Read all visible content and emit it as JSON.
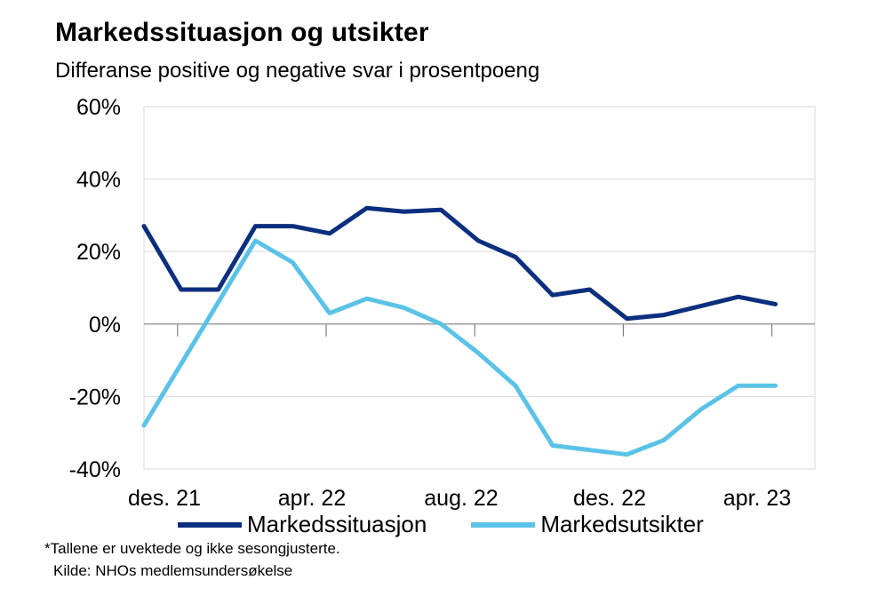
{
  "title": "Markedssituasjon  og utsikter",
  "subtitle": "Differanse positive og negative svar i prosentpoeng",
  "footnote": "*Tallene er uvektede og ikke sesongjusterte.",
  "source": "Kilde: NHOs medlemsundersøkelse",
  "chart_data": {
    "type": "line",
    "title": "Markedssituasjon  og utsikter",
    "subtitle": "Differanse positive og negative svar i prosentpoeng",
    "xlabel": "",
    "ylabel": "",
    "x_ticks": [
      "des. 21",
      "apr. 22",
      "aug. 22",
      "des. 22",
      "apr. 23"
    ],
    "y_ticks": [
      "60%",
      "40%",
      "20%",
      "0%",
      "-20%",
      "-40%"
    ],
    "ylim": [
      -40,
      60
    ],
    "grid": true,
    "legend_position": "bottom",
    "x": [
      "nov. 21",
      "des. 21",
      "jan. 22",
      "feb. 22",
      "mar. 22",
      "apr. 22",
      "mai 22",
      "jun. 22",
      "jul. 22",
      "aug. 22",
      "sep. 22",
      "okt. 22",
      "nov. 22",
      "des. 22",
      "jan. 23",
      "feb. 23",
      "mar. 23",
      "apr. 23"
    ],
    "series": [
      {
        "name": "Markedssituasjon",
        "color": "#0b2f7f",
        "values": [
          27,
          9.5,
          9.5,
          27,
          27,
          25,
          32,
          31,
          31.5,
          23,
          18.5,
          8,
          9.5,
          1.5,
          2.5,
          5,
          7.5,
          5.5
        ]
      },
      {
        "name": "Markedsutsikter",
        "color": "#5bc2e7",
        "values": [
          -28,
          null,
          null,
          23,
          17,
          3,
          7,
          4.5,
          0,
          -8,
          -17,
          -33.5,
          null,
          -36,
          -32,
          -23.5,
          -17,
          -17
        ]
      }
    ]
  }
}
